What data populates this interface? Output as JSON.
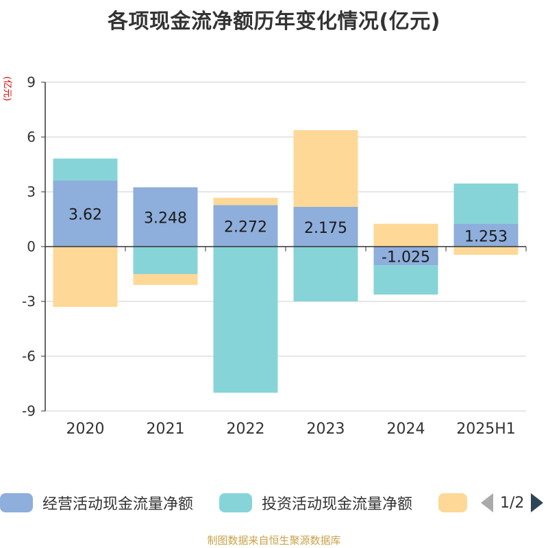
{
  "title": "各项现金流净额历年变化情况(亿元)",
  "y_unit": "(亿元)",
  "legend": {
    "items": [
      {
        "label": "经营活动现金流量净额",
        "color": "#8eaedb"
      },
      {
        "label": "投资活动现金流量净额",
        "color": "#86d4d8"
      },
      {
        "label": "",
        "color": "#fed897"
      }
    ],
    "page": "1/2"
  },
  "source": "制图数据来自恒生聚源数据库",
  "chart_data": {
    "type": "bar",
    "stacked": true,
    "categories": [
      "2020",
      "2021",
      "2022",
      "2023",
      "2024",
      "2025H1"
    ],
    "ylim": [
      -9,
      9
    ],
    "yticks": [
      -9,
      -6,
      -3,
      0,
      3,
      6,
      9
    ],
    "grid": true,
    "legend_position": "bottom",
    "series": [
      {
        "name": "经营活动现金流量净额",
        "color": "#8eaedb",
        "values": [
          3.62,
          3.248,
          2.272,
          2.175,
          -1.025,
          1.253
        ],
        "show_labels": true
      },
      {
        "name": "投资活动现金流量净额",
        "color": "#86d4d8",
        "values": [
          1.2,
          -1.5,
          -8.0,
          -3.0,
          -1.6,
          2.2
        ],
        "show_labels": false
      },
      {
        "name": "",
        "color": "#fed897",
        "values": [
          -3.3,
          -0.6,
          0.4,
          4.2,
          1.25,
          -0.45
        ],
        "show_labels": false
      }
    ]
  }
}
